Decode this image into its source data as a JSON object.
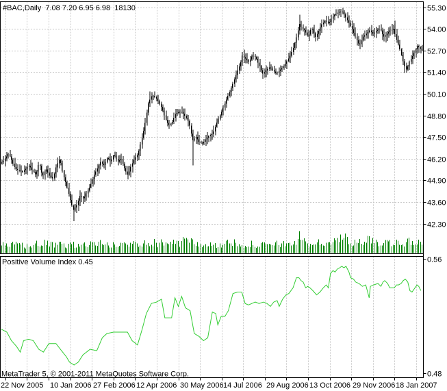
{
  "header": {
    "title": "#BAC,Daily  7.08 7.20 6.95 6.98  18130",
    "symbol": "#BAC",
    "period": "Daily",
    "quote": {
      "open": "7.08",
      "high": "7.20",
      "low": "6.95",
      "close": "6.98",
      "volume": "18130"
    }
  },
  "indicator": {
    "label": "Positive Volume Index 0.45",
    "name": "Positive Volume Index",
    "current_value": "0.45"
  },
  "footer": {
    "copyright": "MetaTrader 5, © 2001-2011 MetaQuotes Software Corp."
  },
  "axes": {
    "price_ticks": [
      "55.30",
      "54.00",
      "52.70",
      "51.40",
      "50.10",
      "48.80",
      "47.50",
      "46.20",
      "44.90",
      "43.60",
      "42.30"
    ],
    "indicator_ticks": [
      "0.56",
      "0.48"
    ],
    "date_ticks": [
      {
        "label": "22 Nov 2005",
        "grid_index": 0
      },
      {
        "label": "10 Jan 2006",
        "grid_index": 2
      },
      {
        "label": "27 Feb 2006",
        "grid_index": 4
      },
      {
        "label": "12 Apr 2006",
        "grid_index": 6
      },
      {
        "label": "30 May 2006",
        "grid_index": 8
      },
      {
        "label": "14 Jul 2006",
        "grid_index": 10
      },
      {
        "label": "29 Aug 2006",
        "grid_index": 12
      },
      {
        "label": "13 Oct 2006",
        "grid_index": 14
      },
      {
        "label": "29 Nov 2006",
        "grid_index": 16
      },
      {
        "label": "18 Jan 2007",
        "grid_index": 18
      }
    ]
  },
  "colors": {
    "background": "#ffffff",
    "grid": "#c6c6c6",
    "bars": "#000000",
    "volume": "#008000",
    "pvi_line": "#32cd32",
    "axis": "#000000",
    "text": "#000000"
  },
  "chart_data": [
    {
      "type": "candlestick",
      "title": "#BAC,Daily",
      "panel": "price",
      "ylim": [
        41.6,
        55.6
      ],
      "y_gridline_values": [
        55.3,
        54.0,
        52.7,
        51.4,
        50.1,
        48.8,
        47.5,
        46.2,
        44.9,
        43.6,
        42.3
      ],
      "x_range_labels": [
        "22 Nov 2005",
        "18 Jan 2007"
      ],
      "grid": "dashed",
      "close_path": [
        [
          0.002,
          46.0
        ],
        [
          0.016,
          46.5
        ],
        [
          0.032,
          45.6
        ],
        [
          0.049,
          45.4
        ],
        [
          0.065,
          45.8
        ],
        [
          0.081,
          45.2
        ],
        [
          0.089,
          46.0
        ],
        [
          0.097,
          45.1
        ],
        [
          0.105,
          45.6
        ],
        [
          0.113,
          45.2
        ],
        [
          0.122,
          45.0
        ],
        [
          0.13,
          45.8
        ],
        [
          0.138,
          46.2
        ],
        [
          0.146,
          45.2
        ],
        [
          0.154,
          44.6
        ],
        [
          0.162,
          43.8
        ],
        [
          0.17,
          43.1
        ],
        [
          0.178,
          43.4
        ],
        [
          0.186,
          44.0
        ],
        [
          0.194,
          43.8
        ],
        [
          0.203,
          44.2
        ],
        [
          0.211,
          44.6
        ],
        [
          0.219,
          45.2
        ],
        [
          0.227,
          45.6
        ],
        [
          0.235,
          46.0
        ],
        [
          0.243,
          45.8
        ],
        [
          0.251,
          46.3
        ],
        [
          0.259,
          46.0
        ],
        [
          0.267,
          46.5
        ],
        [
          0.276,
          46.0
        ],
        [
          0.284,
          46.2
        ],
        [
          0.292,
          45.6
        ],
        [
          0.3,
          45.2
        ],
        [
          0.308,
          45.8
        ],
        [
          0.316,
          46.2
        ],
        [
          0.324,
          46.5
        ],
        [
          0.332,
          47.3
        ],
        [
          0.34,
          48.2
        ],
        [
          0.348,
          49.5
        ],
        [
          0.357,
          50.0
        ],
        [
          0.365,
          49.9
        ],
        [
          0.373,
          49.6
        ],
        [
          0.381,
          49.2
        ],
        [
          0.389,
          48.6
        ],
        [
          0.397,
          48.2
        ],
        [
          0.405,
          48.4
        ],
        [
          0.413,
          48.9
        ],
        [
          0.421,
          49.0
        ],
        [
          0.429,
          49.0
        ],
        [
          0.438,
          48.7
        ],
        [
          0.446,
          48.3
        ],
        [
          0.454,
          47.3
        ],
        [
          0.462,
          47.5
        ],
        [
          0.47,
          47.2
        ],
        [
          0.478,
          47.1
        ],
        [
          0.486,
          47.4
        ],
        [
          0.494,
          47.6
        ],
        [
          0.502,
          47.7
        ],
        [
          0.51,
          48.3
        ],
        [
          0.519,
          48.8
        ],
        [
          0.527,
          49.3
        ],
        [
          0.535,
          49.8
        ],
        [
          0.543,
          50.3
        ],
        [
          0.551,
          50.8
        ],
        [
          0.559,
          51.4
        ],
        [
          0.567,
          51.9
        ],
        [
          0.572,
          52.4
        ],
        [
          0.58,
          52.2
        ],
        [
          0.588,
          52.0
        ],
        [
          0.596,
          52.4
        ],
        [
          0.604,
          52.3
        ],
        [
          0.613,
          51.8
        ],
        [
          0.621,
          51.3
        ],
        [
          0.629,
          51.5
        ],
        [
          0.637,
          51.7
        ],
        [
          0.645,
          51.5
        ],
        [
          0.653,
          51.3
        ],
        [
          0.661,
          51.5
        ],
        [
          0.669,
          51.7
        ],
        [
          0.677,
          52.0
        ],
        [
          0.686,
          52.4
        ],
        [
          0.694,
          52.9
        ],
        [
          0.702,
          53.6
        ],
        [
          0.708,
          54.3
        ],
        [
          0.715,
          54.0
        ],
        [
          0.721,
          53.9
        ],
        [
          0.729,
          53.5
        ],
        [
          0.737,
          54.1
        ],
        [
          0.746,
          53.5
        ],
        [
          0.754,
          53.9
        ],
        [
          0.762,
          54.3
        ],
        [
          0.77,
          54.5
        ],
        [
          0.778,
          54.3
        ],
        [
          0.786,
          54.7
        ],
        [
          0.794,
          54.9
        ],
        [
          0.802,
          55.0
        ],
        [
          0.81,
          55.05
        ],
        [
          0.818,
          54.7
        ],
        [
          0.827,
          54.3
        ],
        [
          0.835,
          53.9
        ],
        [
          0.843,
          53.4
        ],
        [
          0.851,
          53.0
        ],
        [
          0.859,
          53.5
        ],
        [
          0.867,
          53.7
        ],
        [
          0.875,
          53.9
        ],
        [
          0.883,
          53.7
        ],
        [
          0.891,
          53.9
        ],
        [
          0.9,
          54.0
        ],
        [
          0.908,
          53.5
        ],
        [
          0.916,
          53.7
        ],
        [
          0.924,
          53.9
        ],
        [
          0.932,
          54.0
        ],
        [
          0.94,
          53.3
        ],
        [
          0.948,
          52.7
        ],
        [
          0.956,
          51.9
        ],
        [
          0.963,
          51.5
        ],
        [
          0.969,
          52.0
        ],
        [
          0.976,
          52.3
        ],
        [
          0.982,
          52.6
        ],
        [
          0.989,
          53.0
        ],
        [
          0.995,
          52.8
        ]
      ],
      "wick_extremes": [
        [
          0.17,
          "low",
          42.45
        ],
        [
          0.353,
          "high",
          50.25
        ],
        [
          0.454,
          "low",
          45.8
        ],
        [
          0.708,
          "high",
          54.85
        ],
        [
          0.81,
          "high",
          55.25
        ],
        [
          0.937,
          "high",
          54.5
        ],
        [
          0.959,
          "low",
          51.35
        ]
      ]
    },
    {
      "type": "bar",
      "panel": "volume",
      "name": "Volume",
      "profile_relative": [
        [
          0.0,
          0.3
        ],
        [
          0.032,
          0.32
        ],
        [
          0.065,
          0.28
        ],
        [
          0.097,
          0.38
        ],
        [
          0.13,
          0.3
        ],
        [
          0.162,
          0.34
        ],
        [
          0.194,
          0.3
        ],
        [
          0.227,
          0.42
        ],
        [
          0.259,
          0.3
        ],
        [
          0.3,
          0.34
        ],
        [
          0.332,
          0.42
        ],
        [
          0.344,
          0.44
        ],
        [
          0.347,
          0.97
        ],
        [
          0.35,
          0.38
        ],
        [
          0.384,
          0.42
        ],
        [
          0.4,
          0.45
        ],
        [
          0.417,
          0.35
        ],
        [
          0.438,
          0.52
        ],
        [
          0.45,
          0.4
        ],
        [
          0.455,
          0.58
        ],
        [
          0.46,
          0.38
        ],
        [
          0.499,
          0.3
        ],
        [
          0.527,
          0.34
        ],
        [
          0.551,
          0.4
        ],
        [
          0.574,
          0.36
        ],
        [
          0.6,
          0.34
        ],
        [
          0.626,
          0.3
        ],
        [
          0.653,
          0.34
        ],
        [
          0.679,
          0.38
        ],
        [
          0.703,
          0.42
        ],
        [
          0.708,
          0.88
        ],
        [
          0.713,
          0.4
        ],
        [
          0.726,
          0.42
        ],
        [
          0.752,
          0.38
        ],
        [
          0.78,
          0.42
        ],
        [
          0.805,
          0.5
        ],
        [
          0.818,
          0.62
        ],
        [
          0.833,
          0.48
        ],
        [
          0.849,
          0.4
        ],
        [
          0.867,
          0.44
        ],
        [
          0.88,
          0.55
        ],
        [
          0.893,
          0.45
        ],
        [
          0.909,
          0.38
        ],
        [
          0.925,
          0.48
        ],
        [
          0.941,
          0.44
        ],
        [
          0.959,
          0.4
        ],
        [
          0.976,
          0.44
        ],
        [
          0.995,
          0.38
        ]
      ]
    },
    {
      "type": "line",
      "panel": "indicator",
      "name": "Positive Volume Index",
      "current_value": 0.45,
      "ylim": [
        0.48,
        0.56
      ],
      "y_ticks": [
        0.56,
        0.48
      ],
      "points": [
        [
          0.0,
          0.511
        ],
        [
          0.013,
          0.509
        ],
        [
          0.024,
          0.503
        ],
        [
          0.036,
          0.499
        ],
        [
          0.045,
          0.495
        ],
        [
          0.053,
          0.503
        ],
        [
          0.065,
          0.504
        ],
        [
          0.076,
          0.503
        ],
        [
          0.089,
          0.497
        ],
        [
          0.1,
          0.495
        ],
        [
          0.113,
          0.501
        ],
        [
          0.13,
          0.501
        ],
        [
          0.143,
          0.496
        ],
        [
          0.154,
          0.492
        ],
        [
          0.162,
          0.488
        ],
        [
          0.173,
          0.486
        ],
        [
          0.183,
          0.488
        ],
        [
          0.194,
          0.493
        ],
        [
          0.211,
          0.497
        ],
        [
          0.227,
          0.496
        ],
        [
          0.24,
          0.505
        ],
        [
          0.251,
          0.508
        ],
        [
          0.267,
          0.509
        ],
        [
          0.284,
          0.509
        ],
        [
          0.3,
          0.509
        ],
        [
          0.311,
          0.503
        ],
        [
          0.324,
          0.5
        ],
        [
          0.335,
          0.511
        ],
        [
          0.345,
          0.522
        ],
        [
          0.357,
          0.529
        ],
        [
          0.369,
          0.53
        ],
        [
          0.381,
          0.532
        ],
        [
          0.389,
          0.519
        ],
        [
          0.405,
          0.519
        ],
        [
          0.413,
          0.533
        ],
        [
          0.421,
          0.527
        ],
        [
          0.429,
          0.534
        ],
        [
          0.438,
          0.526
        ],
        [
          0.449,
          0.524
        ],
        [
          0.459,
          0.508
        ],
        [
          0.47,
          0.506
        ],
        [
          0.481,
          0.503
        ],
        [
          0.491,
          0.505
        ],
        [
          0.502,
          0.523
        ],
        [
          0.51,
          0.522
        ],
        [
          0.515,
          0.514
        ],
        [
          0.523,
          0.52
        ],
        [
          0.532,
          0.52
        ],
        [
          0.54,
          0.524
        ],
        [
          0.551,
          0.536
        ],
        [
          0.562,
          0.537
        ],
        [
          0.572,
          0.537
        ],
        [
          0.58,
          0.529
        ],
        [
          0.588,
          0.528
        ],
        [
          0.596,
          0.529
        ],
        [
          0.604,
          0.53
        ],
        [
          0.613,
          0.529
        ],
        [
          0.624,
          0.53
        ],
        [
          0.632,
          0.529
        ],
        [
          0.64,
          0.527
        ],
        [
          0.648,
          0.53
        ],
        [
          0.656,
          0.531
        ],
        [
          0.661,
          0.527
        ],
        [
          0.669,
          0.532
        ],
        [
          0.677,
          0.535
        ],
        [
          0.684,
          0.536
        ],
        [
          0.694,
          0.54
        ],
        [
          0.702,
          0.547
        ],
        [
          0.708,
          0.547
        ],
        [
          0.713,
          0.545
        ],
        [
          0.718,
          0.544
        ],
        [
          0.724,
          0.54
        ],
        [
          0.729,
          0.541
        ],
        [
          0.734,
          0.54
        ],
        [
          0.741,
          0.538
        ],
        [
          0.75,
          0.535
        ],
        [
          0.758,
          0.537
        ],
        [
          0.766,
          0.54
        ],
        [
          0.773,
          0.542
        ],
        [
          0.778,
          0.54
        ],
        [
          0.783,
          0.55
        ],
        [
          0.789,
          0.552
        ],
        [
          0.794,
          0.551
        ],
        [
          0.799,
          0.553
        ],
        [
          0.805,
          0.554
        ],
        [
          0.81,
          0.555
        ],
        [
          0.815,
          0.554
        ],
        [
          0.82,
          0.555
        ],
        [
          0.827,
          0.551
        ],
        [
          0.831,
          0.547
        ],
        [
          0.838,
          0.546
        ],
        [
          0.843,
          0.544
        ],
        [
          0.851,
          0.543
        ],
        [
          0.859,
          0.541
        ],
        [
          0.867,
          0.542
        ],
        [
          0.875,
          0.533
        ],
        [
          0.878,
          0.541
        ],
        [
          0.886,
          0.542
        ],
        [
          0.896,
          0.543
        ],
        [
          0.903,
          0.541
        ],
        [
          0.908,
          0.544
        ],
        [
          0.912,
          0.545
        ],
        [
          0.919,
          0.543
        ],
        [
          0.924,
          0.54
        ],
        [
          0.928,
          0.54
        ],
        [
          0.935,
          0.54
        ],
        [
          0.94,
          0.542
        ],
        [
          0.945,
          0.542
        ],
        [
          0.951,
          0.543
        ],
        [
          0.956,
          0.545
        ],
        [
          0.961,
          0.546
        ],
        [
          0.967,
          0.544
        ],
        [
          0.972,
          0.538
        ],
        [
          0.977,
          0.537
        ],
        [
          0.984,
          0.54
        ],
        [
          0.989,
          0.542
        ],
        [
          0.993,
          0.541
        ],
        [
          0.998,
          0.538
        ]
      ]
    }
  ]
}
